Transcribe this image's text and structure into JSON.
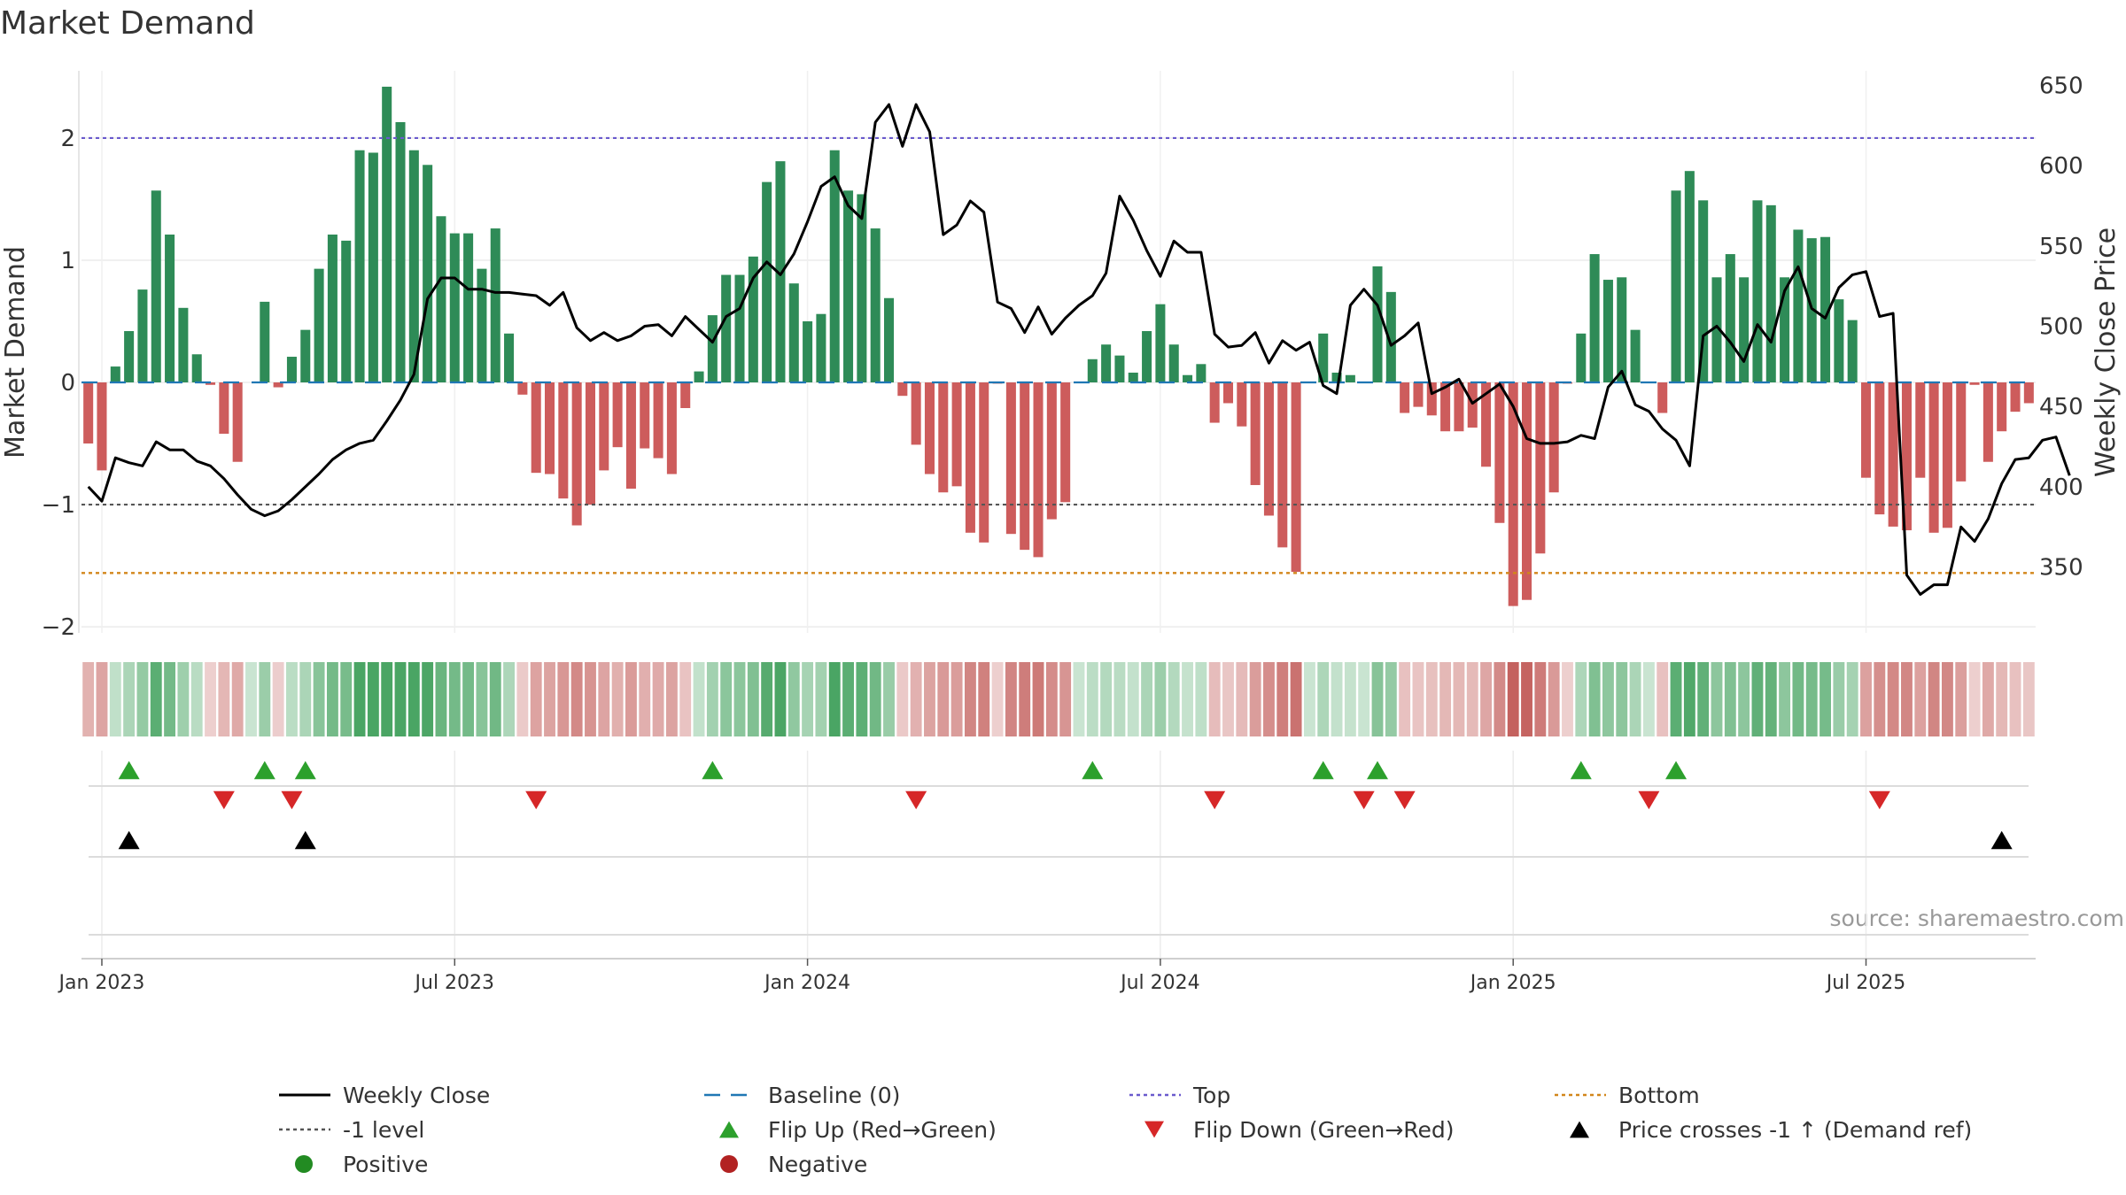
{
  "chart_data": {
    "type": "bar",
    "title": "Market Demand",
    "ylabel": "Market Demand",
    "y2label": "Weekly Close Price",
    "ylim": [
      -2.05,
      2.55
    ],
    "y2lim": [
      309,
      659
    ],
    "yticks": [
      "−2",
      "−1",
      "0",
      "1",
      "2"
    ],
    "yticks_values": [
      -2,
      -1,
      0,
      1,
      2
    ],
    "y2ticks": [
      "350",
      "400",
      "450",
      "500",
      "550",
      "600",
      "650"
    ],
    "y2ticks_values": [
      350,
      400,
      450,
      500,
      550,
      600,
      650
    ],
    "xticks": [
      "Jan 2023",
      "Jul 2023",
      "Jan 2024",
      "Jul 2024",
      "Jan 2025",
      "Jul 2025"
    ],
    "xticks_week_index": [
      1,
      27,
      53,
      79,
      105,
      131
    ],
    "reference_lines": {
      "top": 2.0,
      "minus_one": -1.0,
      "bottom": -1.56,
      "baseline": 0
    },
    "colors": {
      "positive": "#2e8b57",
      "negative": "#cd5c5c",
      "close": "#000000",
      "top": "#6a5acd",
      "bottom": "#d2861a",
      "minus_one": "#555555",
      "baseline": "#1f77b4",
      "flip_up": "#2ca02c",
      "flip_down": "#d62728",
      "cross": "#000000",
      "legend_positive": "#228b22",
      "legend_negative": "#b22222"
    },
    "series": [
      {
        "name": "Market Demand",
        "values": [
          -0.5,
          -0.72,
          0.13,
          0.42,
          0.76,
          1.57,
          1.21,
          0.61,
          0.23,
          -0.02,
          -0.42,
          -0.65,
          0.0,
          0.66,
          -0.04,
          0.21,
          0.43,
          0.93,
          1.21,
          1.16,
          1.9,
          1.88,
          2.42,
          2.13,
          1.9,
          1.78,
          1.36,
          1.22,
          1.22,
          0.93,
          1.26,
          0.4,
          -0.1,
          -0.74,
          -0.75,
          -0.95,
          -1.17,
          -1.0,
          -0.72,
          -0.53,
          -0.87,
          -0.54,
          -0.62,
          -0.75,
          -0.21,
          0.09,
          0.55,
          0.88,
          0.88,
          1.03,
          1.64,
          1.81,
          0.81,
          0.5,
          0.56,
          1.9,
          1.57,
          1.54,
          1.26,
          0.69,
          -0.11,
          -0.51,
          -0.75,
          -0.9,
          -0.85,
          -1.23,
          -1.31,
          -0.01,
          -1.24,
          -1.37,
          -1.43,
          -1.12,
          -0.98,
          0.0,
          0.19,
          0.31,
          0.22,
          0.08,
          0.42,
          0.64,
          0.31,
          0.06,
          0.15,
          -0.33,
          -0.17,
          -0.36,
          -0.84,
          -1.09,
          -1.35,
          -1.55,
          0.0,
          0.4,
          0.08,
          0.06,
          0.0,
          0.95,
          0.74,
          -0.25,
          -0.2,
          -0.27,
          -0.4,
          -0.4,
          -0.37,
          -0.69,
          -1.15,
          -1.83,
          -1.78,
          -1.4,
          -0.9,
          -0.01,
          0.4,
          1.05,
          0.84,
          0.86,
          0.43,
          0.0,
          -0.25,
          1.57,
          1.73,
          1.49,
          0.86,
          1.05,
          0.86,
          1.49,
          1.45,
          0.86,
          1.25,
          1.18,
          1.19,
          0.68,
          0.51,
          -0.78,
          -1.08,
          -1.18,
          -1.21,
          -0.78,
          -1.23,
          -1.19,
          -0.81,
          -0.02,
          -0.65,
          -0.4,
          -0.24,
          -0.17
        ]
      },
      {
        "name": "Weekly Close",
        "values": [
          400,
          391,
          418,
          415,
          413,
          428,
          423,
          423,
          416,
          413,
          405,
          395,
          386,
          382,
          385,
          392,
          400,
          408,
          417,
          423,
          427,
          429,
          441,
          454,
          470,
          517,
          530,
          530,
          523,
          523,
          521,
          521,
          520,
          519,
          513,
          521,
          499,
          491,
          496,
          491,
          494,
          500,
          501,
          494,
          506,
          498,
          490,
          506,
          511,
          530,
          540,
          532,
          545,
          565,
          587,
          593,
          575,
          567,
          627,
          638,
          612,
          638,
          621,
          557,
          563,
          578,
          571,
          515,
          511,
          496,
          512,
          495,
          505,
          513,
          519,
          533,
          581,
          566,
          547,
          531,
          553,
          546,
          546,
          495,
          487,
          488,
          496,
          477,
          491,
          485,
          490,
          463,
          458,
          513,
          523,
          513,
          488,
          494,
          502,
          458,
          462,
          467,
          452,
          458,
          464,
          450,
          430,
          427,
          427,
          428,
          432,
          430,
          462,
          472,
          451,
          447,
          436,
          429,
          413,
          494,
          500,
          490,
          478,
          501,
          490,
          522,
          537,
          511,
          505,
          524,
          532,
          534,
          506,
          508,
          345,
          333,
          339,
          339,
          375,
          366,
          380,
          402,
          417,
          418,
          429,
          431,
          407
        ]
      }
    ],
    "strip": {
      "name": "Demand heat strip",
      "values": [
        -0.5,
        -0.72,
        0.13,
        0.42,
        0.76,
        1.57,
        1.21,
        0.61,
        0.23,
        -0.02,
        -0.42,
        -0.65,
        0.0,
        0.66,
        -0.04,
        0.21,
        0.43,
        0.93,
        1.21,
        1.16,
        1.9,
        1.88,
        2.42,
        2.13,
        1.9,
        1.78,
        1.36,
        1.22,
        1.22,
        0.93,
        1.26,
        0.4,
        -0.1,
        -0.74,
        -0.75,
        -0.95,
        -1.17,
        -1.0,
        -0.72,
        -0.53,
        -0.87,
        -0.54,
        -0.62,
        -0.75,
        -0.21,
        0.09,
        0.55,
        0.88,
        0.88,
        1.03,
        1.64,
        1.81,
        0.81,
        0.5,
        0.56,
        1.9,
        1.57,
        1.54,
        1.26,
        0.69,
        -0.11,
        -0.51,
        -0.75,
        -0.9,
        -0.85,
        -1.23,
        -1.31,
        -0.01,
        -1.24,
        -1.37,
        -1.43,
        -1.12,
        -0.98,
        0.0,
        0.19,
        0.31,
        0.22,
        0.08,
        0.42,
        0.64,
        0.31,
        0.06,
        0.15,
        -0.33,
        -0.17,
        -0.36,
        -0.84,
        -1.09,
        -1.35,
        -1.55,
        0.0,
        0.4,
        0.08,
        0.06,
        0.0,
        0.95,
        0.74,
        -0.25,
        -0.2,
        -0.27,
        -0.4,
        -0.4,
        -0.37,
        -0.69,
        -1.15,
        -1.83,
        -1.78,
        -1.4,
        -0.9,
        -0.01,
        0.4,
        1.05,
        0.84,
        0.86,
        0.43,
        0.0,
        -0.25,
        1.57,
        1.73,
        1.49,
        0.86,
        1.05,
        0.86,
        1.49,
        1.45,
        0.86,
        1.25,
        1.18,
        1.19,
        0.68,
        0.51,
        -0.78,
        -1.08,
        -1.18,
        -1.21,
        -0.78,
        -1.23,
        -1.19,
        -0.81,
        -0.02,
        -0.65,
        -0.4,
        -0.24,
        -0.17
      ]
    },
    "flip_up_weeks": [
      3,
      13,
      16,
      46,
      74,
      91,
      95,
      110,
      117
    ],
    "flip_down_weeks": [
      10,
      15,
      33,
      61,
      83,
      94,
      97,
      115,
      132
    ],
    "price_cross_weeks": [
      3,
      16,
      141
    ],
    "legend": [
      {
        "label": "Weekly Close",
        "marker": "line"
      },
      {
        "label": "Baseline (0)",
        "marker": "dash"
      },
      {
        "label": "Top",
        "marker": "dot-top"
      },
      {
        "label": "Bottom",
        "marker": "dot-bottom"
      },
      {
        "label": "-1 level",
        "marker": "dot-gray"
      },
      {
        "label": "Flip Up (Red→Green)",
        "marker": "tri-up-green"
      },
      {
        "label": "Flip Down (Green→Red)",
        "marker": "tri-down-red"
      },
      {
        "label": "Price crosses -1 ↑ (Demand ref)",
        "marker": "tri-up-black"
      },
      {
        "label": "Positive",
        "marker": "circle-green"
      },
      {
        "label": "Negative",
        "marker": "circle-red"
      }
    ],
    "source": "source: sharemaestro.com"
  }
}
